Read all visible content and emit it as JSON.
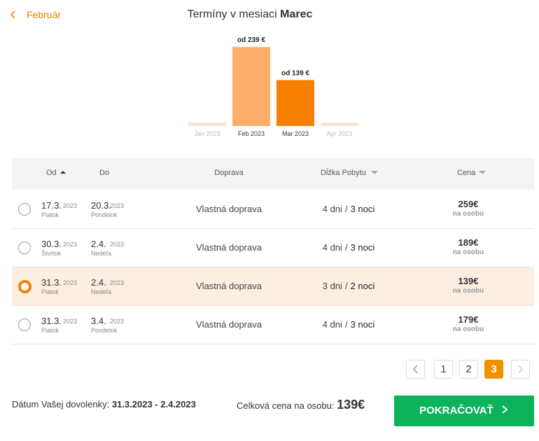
{
  "header": {
    "back_link": "Február",
    "title_prefix": "Termíny v mesiaci",
    "title_month": "Marec"
  },
  "chart_data": {
    "type": "bar",
    "categories": [
      "Jan 2023",
      "Feb 2023",
      "Mar 2023",
      "Apr 2023"
    ],
    "values": [
      null,
      239,
      139,
      null
    ],
    "value_labels": [
      null,
      "od 239 €",
      "od 139 €",
      null
    ],
    "colors": [
      "#fde3cd",
      "#fdae6b",
      "#f77f00",
      "#fde3cd"
    ],
    "ylim": [
      0,
      250
    ]
  },
  "table": {
    "headers": [
      "Od",
      "Do",
      "Doprava",
      "Dĺžka Pobytu",
      "Cena"
    ],
    "stay_separator": "/",
    "selected_row": 2,
    "rows": [
      {
        "from": "17.3.",
        "from_year": "2023",
        "from_day": "Piatok",
        "to": "20.3.",
        "to_year": "2023",
        "to_day": "Pondelok",
        "transport": "Vlastná doprava",
        "days": "4 dni",
        "nights": "3 noci",
        "price": "259€",
        "price_note": "na osobu"
      },
      {
        "from": "30.3.",
        "from_year": "2023",
        "from_day": "Štvrtok",
        "to": "2.4.",
        "to_year": "2023",
        "to_day": "Nedeľa",
        "transport": "Vlastná doprava",
        "days": "4 dni",
        "nights": "3 noci",
        "price": "189€",
        "price_note": "na osobu"
      },
      {
        "from": "31.3.",
        "from_year": "2023",
        "from_day": "Piatok",
        "to": "2.4.",
        "to_year": "2023",
        "to_day": "Nedeľa",
        "transport": "Vlastná doprava",
        "days": "3 dni",
        "nights": "2 noci",
        "price": "139€",
        "price_note": "na osobu"
      },
      {
        "from": "31.3.",
        "from_year": "2023",
        "from_day": "Piatok",
        "to": "3.4.",
        "to_year": "2023",
        "to_day": "Pondelok",
        "transport": "Vlastná doprava",
        "days": "4 dni",
        "nights": "3 noci",
        "price": "179€",
        "price_note": "na osobu"
      }
    ]
  },
  "pagination": {
    "pages": [
      1,
      2,
      3
    ],
    "current": 3
  },
  "footer": {
    "dates_label": "Dátum Vašej dovolenky:",
    "dates_value": "31.3.2023 - 2.4.2023",
    "total_label": "Celková cena na osobu:",
    "total_value": "139€",
    "button": "POKRAČOVAŤ"
  }
}
